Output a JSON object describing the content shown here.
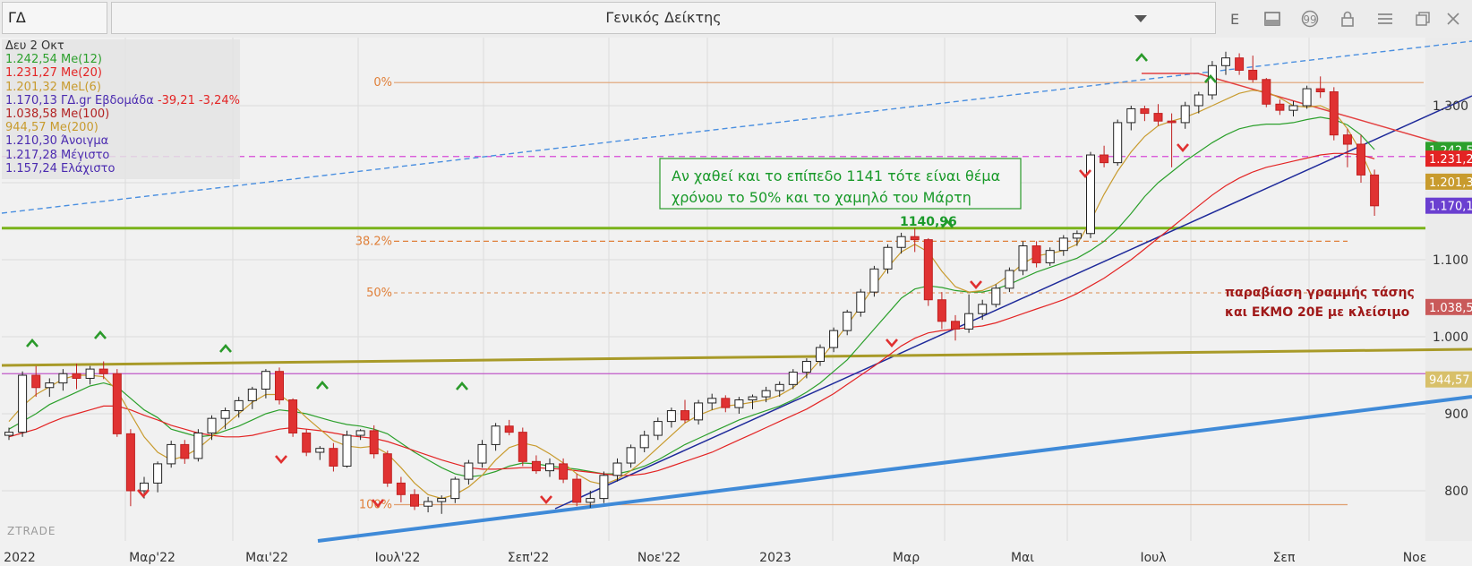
{
  "toolbar": {
    "symbol": "ΓΔ",
    "title": "Γενικός Δείκτης",
    "icons": [
      {
        "name": "dropdown-icon",
        "glyph": "▼"
      },
      {
        "name": "e-icon",
        "glyph": "E"
      },
      {
        "name": "window-icon",
        "glyph": "▬"
      },
      {
        "name": "quote-icon",
        "glyph": "❝"
      },
      {
        "name": "lock-icon",
        "glyph": "🔒"
      },
      {
        "name": "menu-icon",
        "glyph": "☰"
      },
      {
        "name": "restore-icon",
        "glyph": "❐"
      },
      {
        "name": "close-icon",
        "glyph": "✕"
      }
    ]
  },
  "legend": {
    "date": "Δευ 2 Οκτ",
    "rows": [
      {
        "text": "1.242,54 Me(12)",
        "color": "#2ca02c"
      },
      {
        "text": "1.231,27 Me(20)",
        "color": "#e32424"
      },
      {
        "text": "1.201,32 MeL(6)",
        "color": "#c89b2e"
      },
      {
        "text": "1.170,13 ΓΔ.gr Εβδομάδα",
        "extra": " -39,21 -3,24%",
        "color": "#4b2bb0",
        "extra_color": "#e32424"
      },
      {
        "text": "1.038,58 Me(100)",
        "color": "#b22222"
      },
      {
        "text": "944,57 Me(200)",
        "color": "#c89b2e"
      },
      {
        "text": "1.210,30 Άνοιγμα",
        "color": "#4b2bb0"
      },
      {
        "text": "1.217,28 Μέγιστο",
        "color": "#4b2bb0"
      },
      {
        "text": "1.157,24 Ελάχιστο",
        "color": "#4b2bb0"
      }
    ]
  },
  "chart_data": {
    "type": "candlestick",
    "interval": "weekly",
    "x_labels": [
      "2022",
      "Μαρ'22",
      "Μαι'22",
      "Ιουλ'22",
      "Σεπ'22",
      "Νοε'22",
      "2023",
      "Μαρ",
      "Μαι",
      "Ιουλ",
      "Σεπ",
      "Νοε"
    ],
    "y_ticks": [
      "1.300",
      "1.100",
      "1.000",
      "900",
      "800"
    ],
    "ylim": [
      770,
      1370
    ],
    "watermark": "ZTRADE",
    "candles": [
      [
        872,
        882,
        866,
        876
      ],
      [
        876,
        955,
        870,
        950
      ],
      [
        950,
        962,
        922,
        934
      ],
      [
        934,
        946,
        922,
        940
      ],
      [
        940,
        958,
        930,
        952
      ],
      [
        952,
        965,
        932,
        946
      ],
      [
        946,
        962,
        938,
        958
      ],
      [
        958,
        968,
        945,
        952
      ],
      [
        952,
        958,
        870,
        874
      ],
      [
        874,
        880,
        780,
        800
      ],
      [
        800,
        818,
        790,
        810
      ],
      [
        810,
        838,
        798,
        835
      ],
      [
        835,
        865,
        830,
        860
      ],
      [
        860,
        866,
        835,
        842
      ],
      [
        842,
        880,
        838,
        875
      ],
      [
        875,
        898,
        866,
        894
      ],
      [
        894,
        908,
        880,
        904
      ],
      [
        904,
        922,
        895,
        917
      ],
      [
        917,
        935,
        906,
        932
      ],
      [
        932,
        958,
        920,
        955
      ],
      [
        955,
        960,
        912,
        918
      ],
      [
        918,
        920,
        870,
        875
      ],
      [
        875,
        880,
        845,
        850
      ],
      [
        850,
        858,
        840,
        855
      ],
      [
        855,
        862,
        825,
        832
      ],
      [
        832,
        878,
        830,
        872
      ],
      [
        872,
        880,
        866,
        878
      ],
      [
        878,
        885,
        842,
        848
      ],
      [
        848,
        852,
        805,
        810
      ],
      [
        810,
        818,
        785,
        795
      ],
      [
        795,
        802,
        775,
        780
      ],
      [
        780,
        792,
        772,
        786
      ],
      [
        786,
        794,
        770,
        790
      ],
      [
        790,
        818,
        784,
        815
      ],
      [
        815,
        840,
        808,
        836
      ],
      [
        836,
        866,
        830,
        860
      ],
      [
        860,
        888,
        852,
        884
      ],
      [
        884,
        892,
        872,
        876
      ],
      [
        876,
        882,
        832,
        838
      ],
      [
        838,
        846,
        822,
        826
      ],
      [
        826,
        842,
        818,
        835
      ],
      [
        835,
        842,
        810,
        815
      ],
      [
        815,
        822,
        780,
        785
      ],
      [
        785,
        800,
        778,
        790
      ],
      [
        790,
        825,
        784,
        820
      ],
      [
        820,
        842,
        812,
        836
      ],
      [
        836,
        860,
        830,
        856
      ],
      [
        856,
        878,
        850,
        872
      ],
      [
        872,
        895,
        866,
        890
      ],
      [
        890,
        908,
        882,
        904
      ],
      [
        904,
        918,
        888,
        892
      ],
      [
        892,
        918,
        886,
        914
      ],
      [
        914,
        926,
        905,
        920
      ],
      [
        920,
        924,
        902,
        908
      ],
      [
        908,
        922,
        900,
        918
      ],
      [
        918,
        925,
        906,
        922
      ],
      [
        922,
        935,
        915,
        930
      ],
      [
        930,
        942,
        922,
        938
      ],
      [
        938,
        958,
        932,
        954
      ],
      [
        954,
        972,
        946,
        968
      ],
      [
        968,
        990,
        962,
        986
      ],
      [
        986,
        1012,
        980,
        1008
      ],
      [
        1008,
        1035,
        1002,
        1032
      ],
      [
        1032,
        1062,
        1026,
        1058
      ],
      [
        1058,
        1092,
        1052,
        1088
      ],
      [
        1088,
        1120,
        1082,
        1116
      ],
      [
        1116,
        1135,
        1108,
        1130
      ],
      [
        1130,
        1141,
        1110,
        1126
      ],
      [
        1126,
        1128,
        1040,
        1048
      ],
      [
        1048,
        1058,
        1010,
        1020
      ],
      [
        1020,
        1028,
        995,
        1010
      ],
      [
        1010,
        1055,
        1005,
        1030
      ],
      [
        1030,
        1048,
        1022,
        1042
      ],
      [
        1042,
        1068,
        1038,
        1063
      ],
      [
        1063,
        1090,
        1058,
        1086
      ],
      [
        1086,
        1124,
        1080,
        1118
      ],
      [
        1118,
        1124,
        1090,
        1096
      ],
      [
        1096,
        1116,
        1092,
        1112
      ],
      [
        1112,
        1132,
        1105,
        1128
      ],
      [
        1128,
        1138,
        1118,
        1134
      ],
      [
        1134,
        1240,
        1128,
        1236
      ],
      [
        1236,
        1248,
        1220,
        1226
      ],
      [
        1226,
        1282,
        1222,
        1278
      ],
      [
        1278,
        1300,
        1268,
        1296
      ],
      [
        1296,
        1300,
        1280,
        1290
      ],
      [
        1290,
        1302,
        1274,
        1280
      ],
      [
        1280,
        1290,
        1220,
        1278
      ],
      [
        1278,
        1305,
        1270,
        1300
      ],
      [
        1300,
        1318,
        1290,
        1314
      ],
      [
        1314,
        1358,
        1308,
        1352
      ],
      [
        1352,
        1370,
        1340,
        1362
      ],
      [
        1362,
        1368,
        1340,
        1346
      ],
      [
        1346,
        1365,
        1330,
        1334
      ],
      [
        1334,
        1336,
        1298,
        1302
      ],
      [
        1302,
        1308,
        1288,
        1294
      ],
      [
        1294,
        1306,
        1286,
        1300
      ],
      [
        1300,
        1326,
        1296,
        1322
      ],
      [
        1322,
        1338,
        1310,
        1318
      ],
      [
        1318,
        1324,
        1255,
        1262
      ],
      [
        1262,
        1270,
        1220,
        1250
      ],
      [
        1250,
        1262,
        1200,
        1210
      ],
      [
        1210,
        1217,
        1157,
        1170
      ]
    ],
    "series": [
      {
        "name": "Me(12)",
        "color": "#2ca02c",
        "values": [
          880,
          890,
          900,
          912,
          920,
          928,
          936,
          940,
          935,
          920,
          905,
          895,
          880,
          875,
          870,
          872,
          878,
          884,
          892,
          900,
          905,
          903,
          900,
          895,
          890,
          886,
          884,
          880,
          874,
          862,
          850,
          840,
          830,
          822,
          818,
          820,
          825,
          832,
          836,
          835,
          832,
          830,
          828,
          825,
          822,
          822,
          826,
          832,
          840,
          850,
          860,
          868,
          876,
          884,
          892,
          898,
          904,
          910,
          918,
          928,
          940,
          955,
          970,
          990,
          1010,
          1030,
          1050,
          1062,
          1066,
          1064,
          1060,
          1058,
          1058,
          1062,
          1068,
          1076,
          1084,
          1090,
          1096,
          1102,
          1112,
          1124,
          1140,
          1160,
          1182,
          1200,
          1214,
          1228,
          1240,
          1252,
          1262,
          1270,
          1274,
          1276,
          1276,
          1278,
          1282,
          1285,
          1282,
          1275,
          1262,
          1243
        ]
      },
      {
        "name": "Me(20)",
        "color": "#e32424",
        "values": [
          870,
          875,
          880,
          888,
          895,
          900,
          905,
          910,
          910,
          905,
          898,
          892,
          885,
          880,
          875,
          872,
          870,
          870,
          872,
          876,
          880,
          882,
          880,
          878,
          875,
          872,
          870,
          868,
          864,
          858,
          852,
          846,
          840,
          835,
          830,
          828,
          828,
          829,
          830,
          830,
          829,
          828,
          826,
          824,
          822,
          820,
          820,
          822,
          826,
          832,
          838,
          844,
          850,
          858,
          866,
          874,
          882,
          890,
          898,
          906,
          916,
          926,
          938,
          950,
          962,
          975,
          988,
          998,
          1005,
          1008,
          1010,
          1012,
          1014,
          1018,
          1024,
          1030,
          1036,
          1042,
          1048,
          1056,
          1066,
          1076,
          1088,
          1100,
          1114,
          1128,
          1142,
          1156,
          1170,
          1184,
          1196,
          1206,
          1214,
          1220,
          1224,
          1228,
          1232,
          1236,
          1238,
          1238,
          1236,
          1231
        ]
      },
      {
        "name": "MeL(6)",
        "color": "#c89b2e",
        "values": [
          890,
          910,
          925,
          935,
          945,
          950,
          950,
          948,
          930,
          900,
          870,
          850,
          840,
          845,
          855,
          870,
          885,
          900,
          915,
          925,
          925,
          912,
          895,
          880,
          865,
          858,
          856,
          858,
          848,
          830,
          810,
          795,
          790,
          795,
          805,
          820,
          840,
          856,
          862,
          858,
          848,
          836,
          822,
          812,
          808,
          815,
          826,
          840,
          856,
          872,
          888,
          898,
          905,
          910,
          912,
          915,
          918,
          924,
          934,
          950,
          970,
          992,
          1015,
          1040,
          1066,
          1090,
          1110,
          1120,
          1110,
          1085,
          1065,
          1058,
          1060,
          1068,
          1080,
          1095,
          1105,
          1108,
          1112,
          1120,
          1150,
          1185,
          1215,
          1240,
          1260,
          1274,
          1280,
          1285,
          1292,
          1300,
          1308,
          1316,
          1320,
          1318,
          1310,
          1300,
          1298,
          1300,
          1292,
          1270,
          1240,
          1201
        ]
      },
      {
        "name": "Me(100)",
        "color": "#b22222",
        "values": [
          null,
          null,
          null,
          null,
          null,
          null,
          null,
          null,
          null,
          null,
          null,
          null,
          null,
          null,
          null,
          null,
          null,
          null,
          null,
          null,
          null,
          null,
          null,
          null,
          null,
          null,
          null,
          null,
          null,
          null,
          null,
          null,
          null,
          null,
          null,
          null,
          null,
          null,
          null,
          null,
          null,
          null,
          null,
          null,
          null,
          null,
          null,
          null,
          null,
          null,
          null,
          null,
          null,
          null,
          null,
          null,
          null,
          null,
          null,
          null,
          null,
          null,
          null,
          null,
          null,
          null,
          null,
          null,
          null,
          null,
          null,
          null,
          null,
          null,
          null,
          null,
          null,
          null,
          null,
          null,
          null,
          null,
          null,
          null,
          null,
          null,
          null,
          null,
          null,
          null,
          null,
          null,
          null,
          null,
          null,
          null,
          null,
          null,
          null,
          null,
          null,
          null
        ]
      },
      {
        "name": "Me(200)",
        "color": "#c89b2e",
        "values": []
      }
    ],
    "fib_levels": [
      {
        "label": "0%",
        "value": 1330
      },
      {
        "label": "38.2%",
        "value": 1124
      },
      {
        "label": "50%",
        "value": 1057
      },
      {
        "label": "100%",
        "value": 782
      }
    ],
    "price_tags": [
      {
        "text": "1.242,54",
        "value": 1242.54,
        "color": "#2ca02c"
      },
      {
        "text": "1.231,27",
        "value": 1231.27,
        "color": "#e32424"
      },
      {
        "text": "1.201,32",
        "value": 1201.32,
        "color": "#c89b2e"
      },
      {
        "text": "1.170,13",
        "value": 1170.13,
        "color": "#6a3fd0"
      },
      {
        "text": "1.038,58",
        "value": 1038.58,
        "color": "#c95a5a"
      },
      {
        "text": "944,57",
        "value": 944.57,
        "color": "#d8c06a"
      }
    ],
    "annotations": [
      {
        "text": "Αν χαθεί και το επίπεδο 1141 τότε είναι θέμα",
        "color": "#1a9a2a"
      },
      {
        "text": "χρόνου το 50% και το χαμηλό του Μάρτη",
        "color": "#1a9a2a"
      },
      {
        "text": "1140,96",
        "color": "#1a9a2a"
      },
      {
        "text": "παραβίαση γραμμής τάσης",
        "color": "#a01a1a"
      },
      {
        "text": "και ΕΚΜΟ 20Ε με κλείσιμο",
        "color": "#a01a1a"
      }
    ],
    "horizontal_lines": [
      {
        "value": 1234,
        "color": "#d64ad6",
        "style": "dashed"
      },
      {
        "value": 1141,
        "color": "#7ab31a",
        "style": "solid"
      },
      {
        "value": 952,
        "color": "#c058c8",
        "style": "solid"
      }
    ]
  },
  "colors": {
    "up_candle": "#ffffff",
    "down_candle": "#e03232",
    "background": "#f0f0f0"
  }
}
